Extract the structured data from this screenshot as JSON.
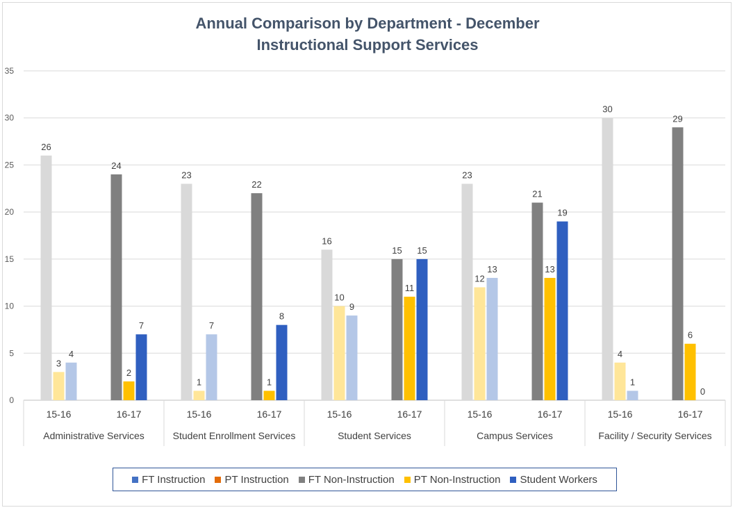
{
  "chart_data": {
    "type": "bar",
    "title_line1": "Annual Comparison by Department - December",
    "title_line2": "Instructional Support Services",
    "xlabel": "",
    "ylabel": "",
    "ylim": [
      0,
      35
    ],
    "yticks": [
      0,
      5,
      10,
      15,
      20,
      25,
      30,
      35
    ],
    "grid": true,
    "legend_position": "bottom",
    "years": [
      "15-16",
      "16-17"
    ],
    "groups": [
      {
        "name": "Administrative Services",
        "years": [
          {
            "label": "15-16",
            "values": {
              "ft_non_instruction": 26,
              "pt_non_instruction": 3,
              "student_workers": 4
            }
          },
          {
            "label": "16-17",
            "values": {
              "ft_non_instruction": 24,
              "pt_non_instruction": 2,
              "student_workers": 7
            }
          }
        ]
      },
      {
        "name": "Student Enrollment Services",
        "years": [
          {
            "label": "15-16",
            "values": {
              "ft_non_instruction": 23,
              "pt_non_instruction": 1,
              "student_workers": 7
            }
          },
          {
            "label": "16-17",
            "values": {
              "ft_non_instruction": 22,
              "pt_non_instruction": 1,
              "student_workers": 8
            }
          }
        ]
      },
      {
        "name": "Student Services",
        "years": [
          {
            "label": "15-16",
            "values": {
              "ft_non_instruction": 16,
              "pt_non_instruction": 10,
              "student_workers": 9
            }
          },
          {
            "label": "16-17",
            "values": {
              "ft_non_instruction": 15,
              "pt_non_instruction": 11,
              "student_workers": 15
            }
          }
        ]
      },
      {
        "name": "Campus Services",
        "years": [
          {
            "label": "15-16",
            "values": {
              "ft_non_instruction": 23,
              "pt_non_instruction": 12,
              "student_workers": 13
            }
          },
          {
            "label": "16-17",
            "values": {
              "ft_non_instruction": 21,
              "pt_non_instruction": 13,
              "student_workers": 19
            }
          }
        ]
      },
      {
        "name": "Facility / Security Services",
        "years": [
          {
            "label": "15-16",
            "values": {
              "ft_non_instruction": 30,
              "pt_non_instruction": 4,
              "student_workers": 1
            }
          },
          {
            "label": "16-17",
            "values": {
              "ft_non_instruction": 29,
              "pt_non_instruction": 6,
              "student_workers": 0
            }
          }
        ]
      }
    ],
    "series": [
      {
        "key": "ft_instruction",
        "name": "FT Instruction",
        "color": "#4472c4",
        "color_prior": "#b4c7e7",
        "drawn": false
      },
      {
        "key": "pt_instruction",
        "name": "PT Instruction",
        "color": "#e36c09",
        "color_prior": "#f8cbad",
        "drawn": false
      },
      {
        "key": "ft_non_instruction",
        "name": "FT Non-Instruction",
        "color": "#808080",
        "color_prior": "#d9d9d9",
        "drawn": true
      },
      {
        "key": "pt_non_instruction",
        "name": "PT Non-Instruction",
        "color": "#ffc000",
        "color_prior": "#ffe699",
        "drawn": true
      },
      {
        "key": "student_workers",
        "name": "Student Workers",
        "color": "#2f5fc0",
        "color_prior": "#b4c7e7",
        "drawn": true
      }
    ]
  }
}
